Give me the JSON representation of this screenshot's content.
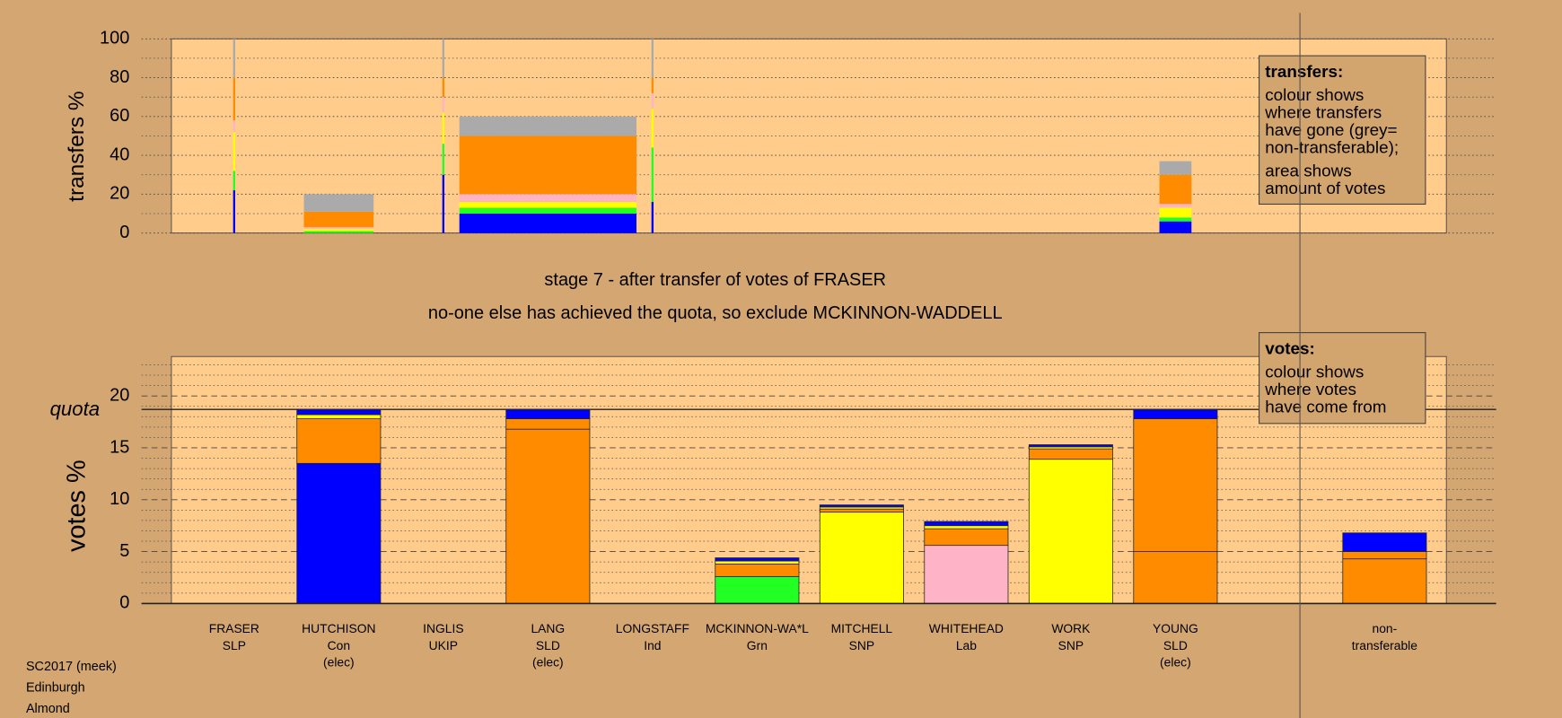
{
  "chart_data": [
    {
      "type": "bar",
      "stacked": true,
      "y_label": "transfers %",
      "ylim": [
        0,
        100
      ],
      "yticks": [
        0,
        20,
        40,
        60,
        80,
        100
      ],
      "minor_grid": [
        10,
        30,
        50,
        70,
        90
      ],
      "widths": [
        0.3,
        10,
        0.3,
        25.4,
        0.3,
        null,
        null,
        null,
        null,
        4.6,
        null
      ],
      "series": [
        {
          "color": "#0000ff",
          "values": [
            22,
            0,
            30,
            10,
            16,
            null,
            null,
            null,
            null,
            6,
            null
          ]
        },
        {
          "color": "#22ff22",
          "values": [
            10,
            1,
            16,
            3,
            28,
            null,
            null,
            null,
            null,
            2,
            null
          ]
        },
        {
          "color": "#ffff00",
          "values": [
            20,
            1,
            16,
            3,
            20,
            null,
            null,
            null,
            null,
            5,
            null
          ]
        },
        {
          "color": "#ffb3c6",
          "values": [
            6,
            1,
            8,
            4,
            8,
            null,
            null,
            null,
            null,
            2,
            null
          ]
        },
        {
          "color": "#ff8c00",
          "values": [
            22,
            8,
            10,
            30,
            8,
            null,
            null,
            null,
            null,
            15,
            null
          ]
        },
        {
          "color": "#aaaaaa",
          "values": [
            20,
            9,
            20,
            10,
            20,
            null,
            null,
            null,
            null,
            7,
            null
          ]
        }
      ],
      "note": {
        "heading": "transfers:",
        "paragraphs": [
          [
            "colour shows",
            "where transfers",
            "have gone (grey=",
            "non-transferable);"
          ],
          [
            "area shows",
            "amount of votes"
          ]
        ]
      }
    },
    {
      "type": "bar",
      "stacked": true,
      "title": "stage 7 - after transfer of votes of FRASER",
      "subtitle": "no-one else has achieved the quota, so exclude MCKINNON-WADDELL",
      "y_label": "votes %",
      "ylim": [
        0,
        23.8
      ],
      "yticks": [
        0,
        5,
        10,
        15,
        20
      ],
      "minor_grid": [
        1,
        2,
        3,
        4,
        6,
        7,
        8,
        9,
        11,
        12,
        13,
        14,
        16,
        17,
        18,
        19,
        21,
        22,
        23
      ],
      "quota": 18.7,
      "quota_label": "quota",
      "categories": [
        [
          "FRASER",
          "SLP"
        ],
        [
          "HUTCHISON",
          "Con",
          "(elec)"
        ],
        [
          "INGLIS",
          "UKIP"
        ],
        [
          "LANG",
          "SLD",
          "(elec)"
        ],
        [
          "LONGSTAFF",
          "Ind"
        ],
        [
          "MCKINNON-WA*L",
          "Grn"
        ],
        [
          "MITCHELL",
          "SNP"
        ],
        [
          "WHITEHEAD",
          "Lab"
        ],
        [
          "WORK",
          "SNP"
        ],
        [
          "YOUNG",
          "SLD",
          "(elec)"
        ],
        [
          "non-",
          "transferable"
        ]
      ],
      "series": [
        {
          "colors": [
            "#aaaaaa",
            "#0000ff",
            "#aaaaaa",
            "#ff8c00",
            "#aaaaaa",
            "#22ff22",
            "#ffff00",
            "#ffb3c6",
            "#ffff00",
            "#ff8c00",
            "#ff8c00"
          ],
          "values": [
            0,
            13.5,
            0,
            16.8,
            0,
            2.6,
            8.8,
            5.6,
            13.9,
            5.0,
            4.3
          ]
        },
        {
          "color": "#ff8c00",
          "values": [
            0,
            4.3,
            0,
            1.0,
            0,
            1.2,
            0.3,
            1.6,
            1.0,
            12.8,
            0.7
          ]
        },
        {
          "color": "#ffff00",
          "values": [
            0,
            0.4,
            0,
            0,
            0,
            0.3,
            0.2,
            0.3,
            0.2,
            0,
            0
          ]
        },
        {
          "color": "#0000ff",
          "values": [
            0,
            0.5,
            0,
            0.9,
            0,
            0.3,
            0.2,
            0.4,
            0.2,
            0.9,
            1.8
          ]
        }
      ],
      "note": {
        "heading": "votes:",
        "paragraphs": [
          [
            "colour shows",
            "where votes",
            "have come from"
          ]
        ]
      }
    }
  ],
  "footer": [
    "SC2017 (meek)",
    "Edinburgh",
    "Almond"
  ]
}
